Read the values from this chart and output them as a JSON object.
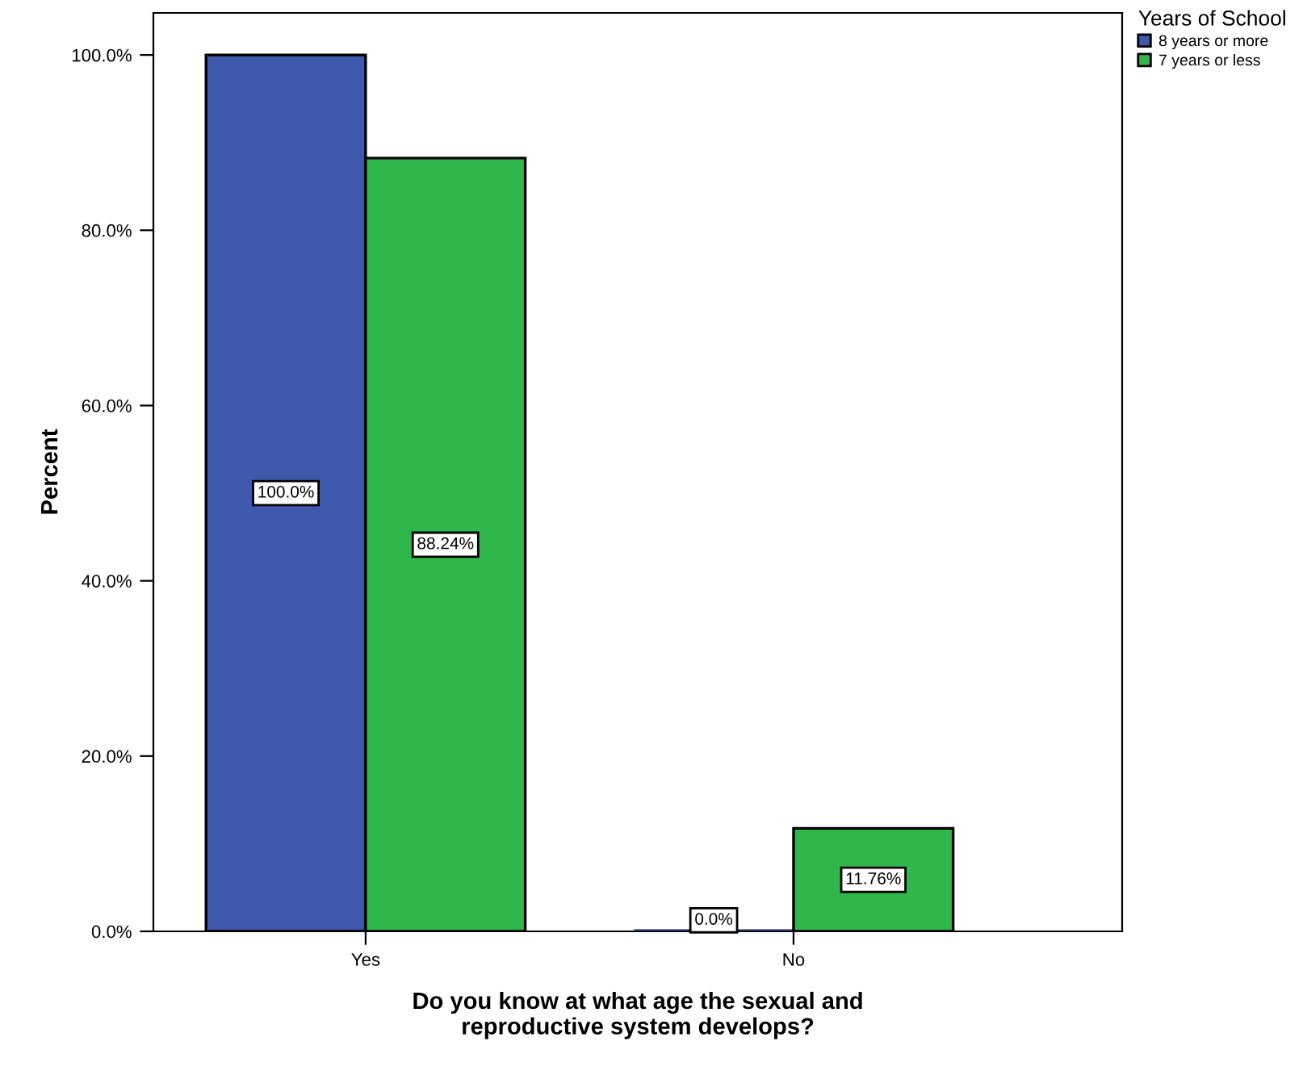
{
  "chart_data": {
    "type": "bar",
    "xlabel": "Do you know at what age the sexual and\nreproductive system develops?",
    "ylabel": "Percent",
    "legend_title": "Years of School",
    "categories": [
      "Yes",
      "No"
    ],
    "series": [
      {
        "name": "8 years or more",
        "color": "#3e58ac",
        "values": [
          100.0,
          0.0
        ],
        "value_labels": [
          "100.0%",
          "0.0%"
        ]
      },
      {
        "name": "7 years or less",
        "color": "#2fb74c",
        "values": [
          88.24,
          11.76
        ],
        "value_labels": [
          "88.24%",
          "11.76%"
        ]
      }
    ],
    "ylim": [
      0,
      104.8
    ],
    "yticks": [
      {
        "value": 0,
        "label": "0.0%"
      },
      {
        "value": 20,
        "label": "20.0%"
      },
      {
        "value": 40,
        "label": "40.0%"
      },
      {
        "value": 60,
        "label": "60.0%"
      },
      {
        "value": 80,
        "label": "80.0%"
      },
      {
        "value": 100,
        "label": "100.0%"
      }
    ],
    "grid": false,
    "legend": "top right"
  }
}
